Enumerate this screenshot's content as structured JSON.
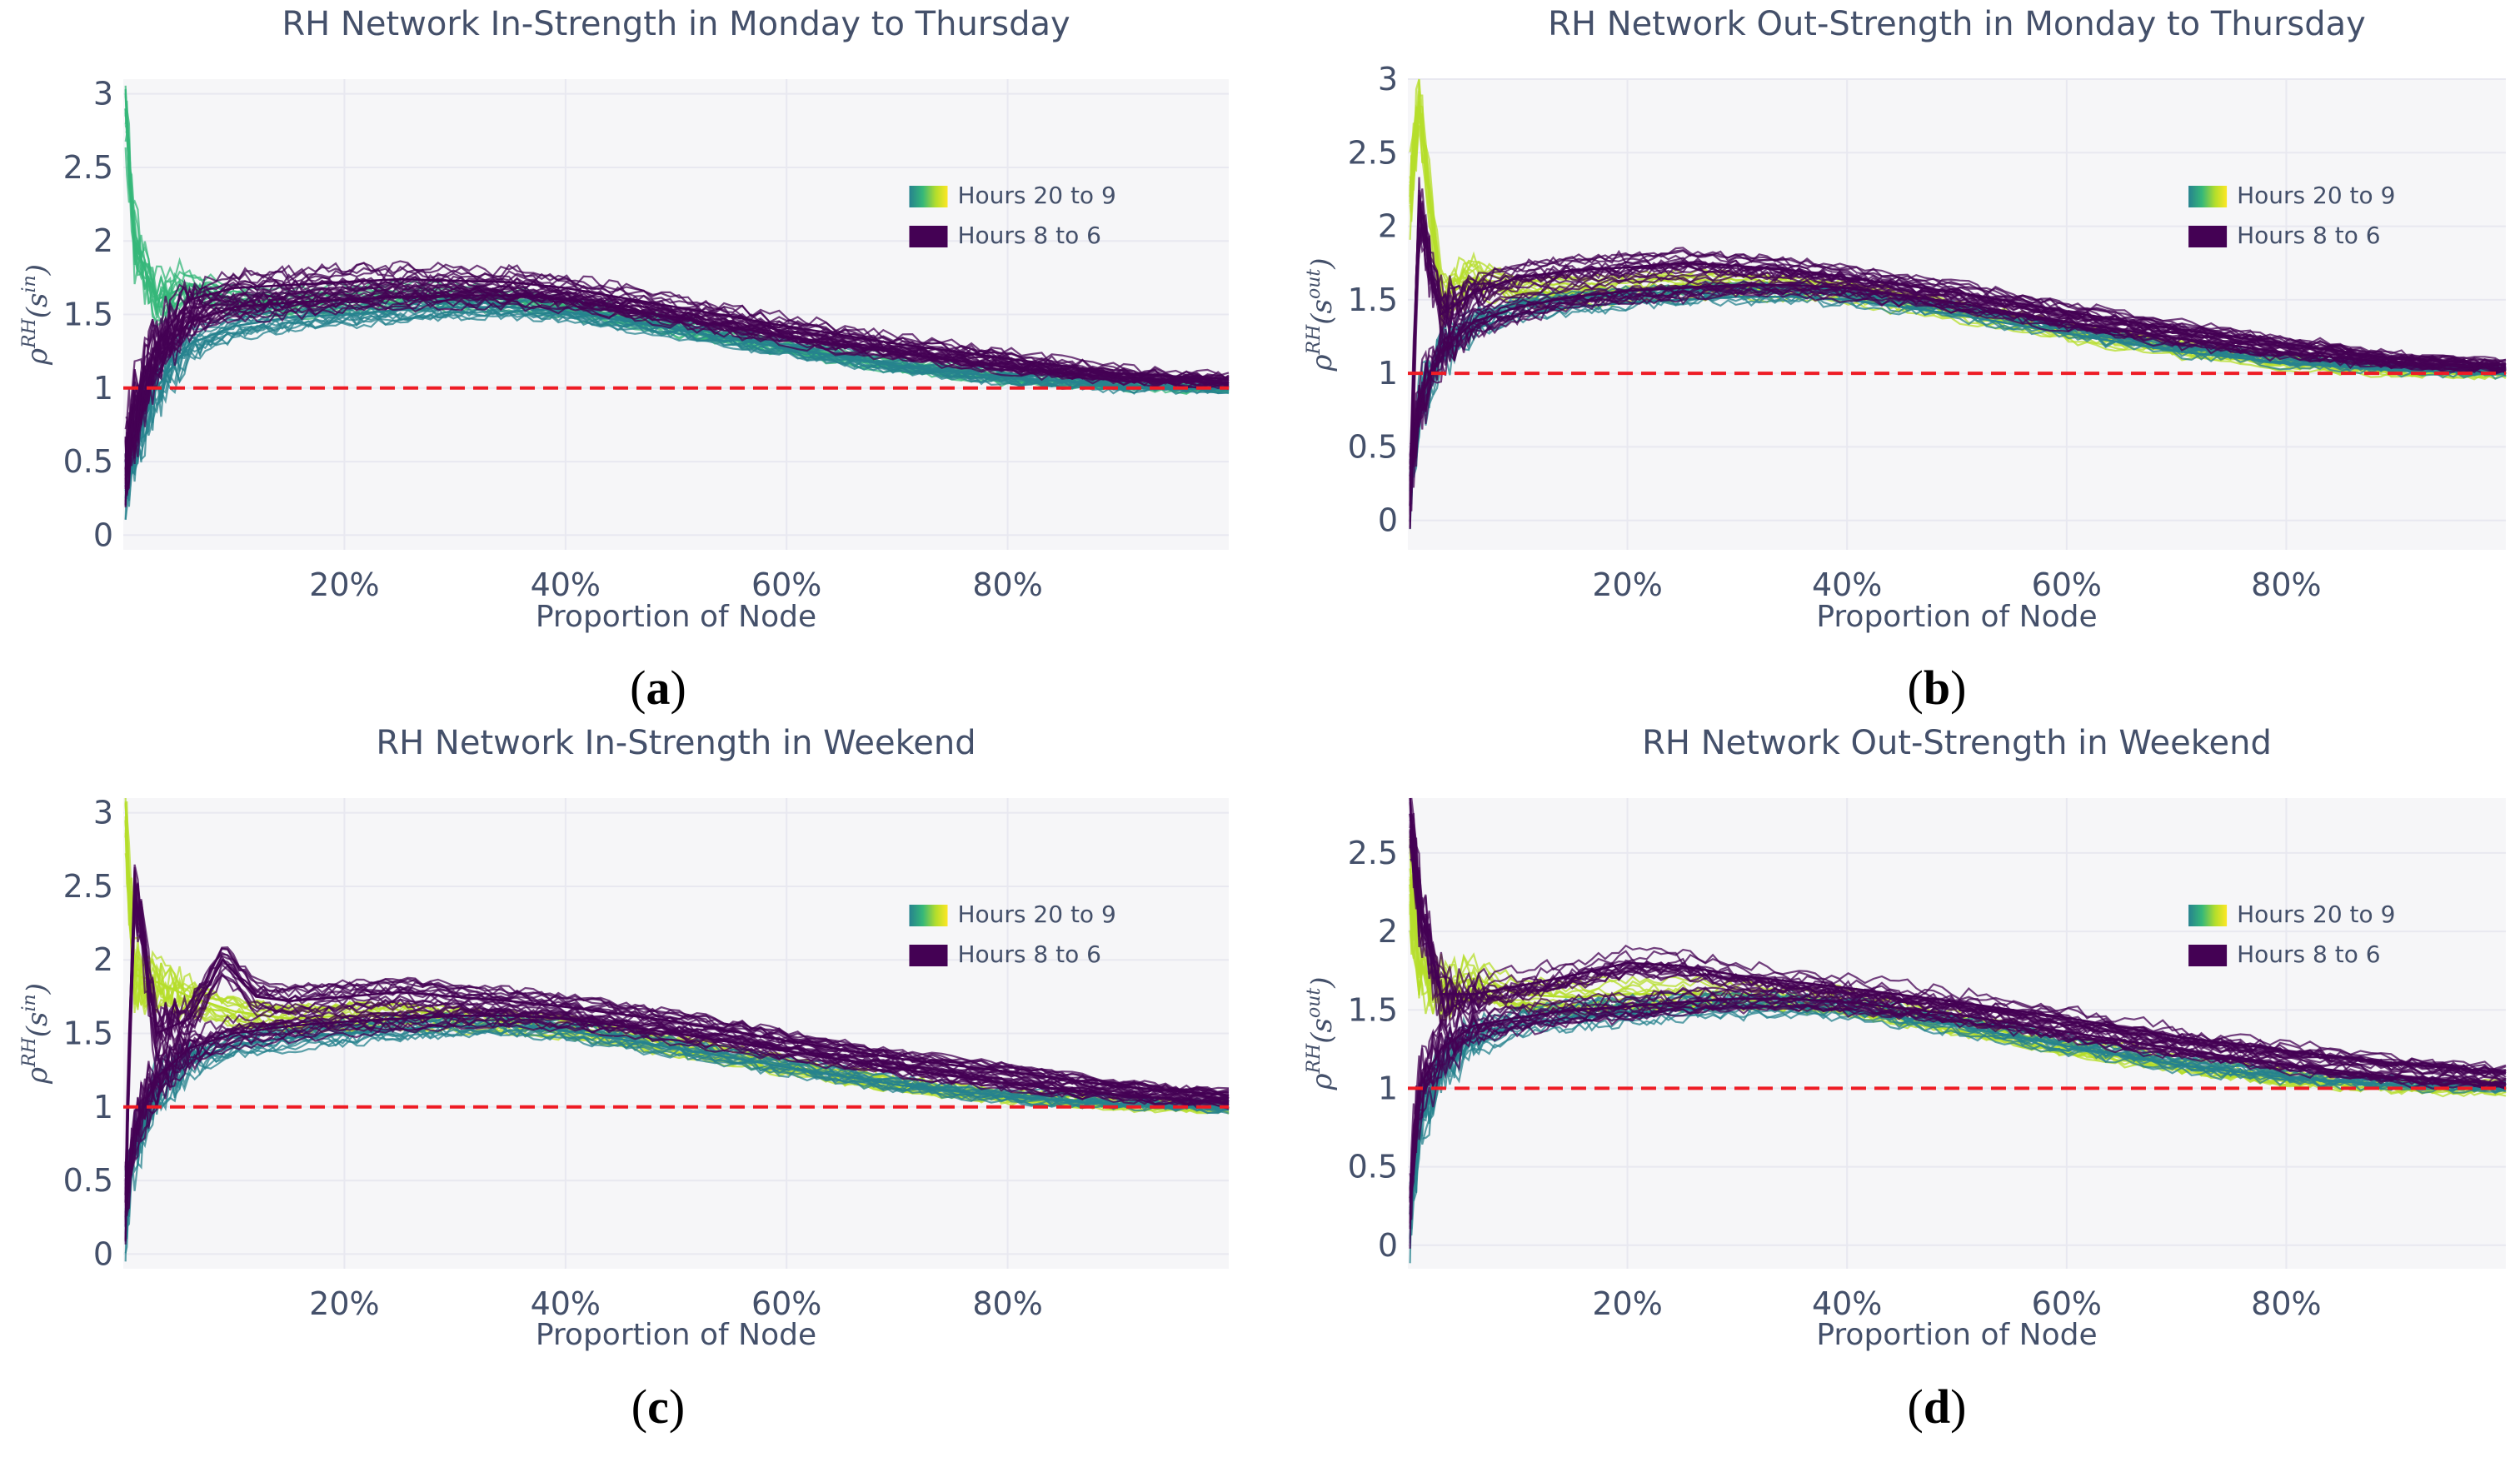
{
  "figure": {
    "background": "#ffffff",
    "plot_background": "#f6f6f8",
    "grid_color": "#e8e8f0",
    "text_color": "#44506a",
    "reference_line_color": "#ee1c25",
    "colorscale": [
      "#3e4a89",
      "#26828e",
      "#35b779",
      "#b5de2b",
      "#fde725"
    ],
    "dark_line_color": "#440154"
  },
  "chart_data": [
    {
      "type": "line",
      "panel_label": "a",
      "title": "RH Network In-Strength in Monday to Thursday",
      "xlabel": "Proportion of Node",
      "ylabel": "ρ^{RH}(s^{in})",
      "ylabel_parts": {
        "rho": "ρ",
        "rho_sup": "RH",
        "s": "s",
        "s_sup": "in"
      },
      "xlim": [
        0,
        1.0
      ],
      "ylim": [
        -0.1,
        3.1
      ],
      "xticks": [
        0.2,
        0.4,
        0.6,
        0.8
      ],
      "xtick_labels": [
        "20%",
        "40%",
        "60%",
        "80%"
      ],
      "yticks": [
        0,
        0.5,
        1,
        1.5,
        2,
        2.5,
        3
      ],
      "ytick_labels": [
        "0",
        "0.5",
        "1",
        "1.5",
        "2",
        "2.5",
        "3"
      ],
      "reference_line": {
        "y": 1,
        "style": "dashed"
      },
      "legend": {
        "position": "top-right",
        "entries": [
          "Hours 20 to 9",
          "Hours 8 to 6"
        ]
      },
      "series": [
        {
          "name": "Hours 8 to 6",
          "color": "#440154",
          "x": [
            0.002,
            0.01,
            0.03,
            0.06,
            0.1,
            0.15,
            0.2,
            0.25,
            0.3,
            0.35,
            0.4,
            0.5,
            0.6,
            0.7,
            0.8,
            0.9,
            1.0
          ],
          "y": [
            0.5,
            0.85,
            1.3,
            1.6,
            1.68,
            1.7,
            1.72,
            1.74,
            1.73,
            1.72,
            1.68,
            1.55,
            1.42,
            1.3,
            1.2,
            1.1,
            1.06
          ]
        },
        {
          "name": "Hours 8 to 6",
          "color": "#440154",
          "x": [
            0.002,
            0.01,
            0.03,
            0.06,
            0.1,
            0.15,
            0.2,
            0.25,
            0.3,
            0.35,
            0.4,
            0.5,
            0.6,
            0.7,
            0.8,
            0.9,
            1.0
          ],
          "y": [
            0.45,
            0.75,
            1.2,
            1.45,
            1.55,
            1.58,
            1.6,
            1.62,
            1.63,
            1.63,
            1.6,
            1.48,
            1.35,
            1.24,
            1.14,
            1.07,
            1.03
          ]
        },
        {
          "name": "Hours 20 to 9",
          "color": "#35b779",
          "x": [
            0.002,
            0.01,
            0.03,
            0.06,
            0.1,
            0.15,
            0.2,
            0.25,
            0.3,
            0.35,
            0.4,
            0.5,
            0.6,
            0.7,
            0.8,
            0.9,
            1.0
          ],
          "y": [
            2.9,
            2.0,
            1.6,
            1.7,
            1.6,
            1.58,
            1.6,
            1.62,
            1.62,
            1.6,
            1.56,
            1.42,
            1.28,
            1.16,
            1.07,
            1.02,
            1.0
          ]
        },
        {
          "name": "Hours 20 to 9",
          "color": "#26828e",
          "x": [
            0.002,
            0.01,
            0.03,
            0.06,
            0.1,
            0.15,
            0.2,
            0.25,
            0.3,
            0.35,
            0.4,
            0.5,
            0.6,
            0.7,
            0.8,
            0.9,
            1.0
          ],
          "y": [
            0.3,
            0.6,
            1.0,
            1.3,
            1.42,
            1.48,
            1.5,
            1.53,
            1.55,
            1.55,
            1.52,
            1.4,
            1.27,
            1.15,
            1.07,
            1.02,
            1.0
          ]
        }
      ]
    },
    {
      "type": "line",
      "panel_label": "b",
      "title": "RH Network Out-Strength in Monday to Thursday",
      "xlabel": "Proportion of Node",
      "ylabel": "ρ^{RH}(s^{out})",
      "ylabel_parts": {
        "rho": "ρ",
        "rho_sup": "RH",
        "s": "s",
        "s_sup": "out"
      },
      "xlim": [
        0,
        1.0
      ],
      "ylim": [
        -0.2,
        3.0
      ],
      "xticks": [
        0.2,
        0.4,
        0.6,
        0.8
      ],
      "xtick_labels": [
        "20%",
        "40%",
        "60%",
        "80%"
      ],
      "yticks": [
        0,
        0.5,
        1,
        1.5,
        2,
        2.5,
        3
      ],
      "ytick_labels": [
        "0",
        "0.5",
        "1",
        "1.5",
        "2",
        "2.5",
        "3"
      ],
      "reference_line": {
        "y": 1,
        "style": "dashed"
      },
      "legend": {
        "position": "top-right",
        "entries": [
          "Hours 20 to 9",
          "Hours 8 to 6"
        ]
      },
      "series": [
        {
          "name": "Hours 8 to 6",
          "color": "#440154",
          "x": [
            0.002,
            0.01,
            0.03,
            0.06,
            0.1,
            0.15,
            0.2,
            0.25,
            0.3,
            0.35,
            0.4,
            0.5,
            0.6,
            0.7,
            0.8,
            0.9,
            1.0
          ],
          "y": [
            0.1,
            2.1,
            1.4,
            1.55,
            1.65,
            1.7,
            1.72,
            1.75,
            1.73,
            1.7,
            1.65,
            1.55,
            1.42,
            1.3,
            1.2,
            1.1,
            1.06
          ]
        },
        {
          "name": "Hours 8 to 6",
          "color": "#440154",
          "x": [
            0.002,
            0.01,
            0.03,
            0.06,
            0.1,
            0.15,
            0.2,
            0.25,
            0.3,
            0.35,
            0.4,
            0.5,
            0.6,
            0.7,
            0.8,
            0.9,
            1.0
          ],
          "y": [
            0.3,
            0.8,
            1.15,
            1.35,
            1.45,
            1.52,
            1.56,
            1.58,
            1.6,
            1.6,
            1.58,
            1.48,
            1.35,
            1.24,
            1.14,
            1.07,
            1.03
          ]
        },
        {
          "name": "Hours 20 to 9",
          "color": "#b5de2b",
          "x": [
            0.002,
            0.01,
            0.03,
            0.06,
            0.1,
            0.15,
            0.2,
            0.25,
            0.3,
            0.35,
            0.4,
            0.5,
            0.6,
            0.7,
            0.8,
            0.9,
            1.0
          ],
          "y": [
            2.2,
            2.85,
            1.5,
            1.65,
            1.55,
            1.55,
            1.57,
            1.6,
            1.6,
            1.58,
            1.55,
            1.42,
            1.28,
            1.16,
            1.07,
            1.02,
            1.0
          ]
        },
        {
          "name": "Hours 20 to 9",
          "color": "#26828e",
          "x": [
            0.002,
            0.01,
            0.03,
            0.06,
            0.1,
            0.15,
            0.2,
            0.25,
            0.3,
            0.35,
            0.4,
            0.5,
            0.6,
            0.7,
            0.8,
            0.9,
            1.0
          ],
          "y": [
            0.2,
            0.7,
            1.1,
            1.3,
            1.4,
            1.45,
            1.48,
            1.5,
            1.52,
            1.52,
            1.5,
            1.4,
            1.27,
            1.15,
            1.07,
            1.02,
            1.0
          ]
        }
      ]
    },
    {
      "type": "line",
      "panel_label": "c",
      "title": "RH Network In-Strength in Weekend",
      "xlabel": "Proportion of Node",
      "ylabel": "ρ^{RH}(s^{in})",
      "ylabel_parts": {
        "rho": "ρ",
        "rho_sup": "RH",
        "s": "s",
        "s_sup": "in"
      },
      "xlim": [
        0,
        1.0
      ],
      "ylim": [
        -0.1,
        3.1
      ],
      "xticks": [
        0.2,
        0.4,
        0.6,
        0.8
      ],
      "xtick_labels": [
        "20%",
        "40%",
        "60%",
        "80%"
      ],
      "yticks": [
        0,
        0.5,
        1,
        1.5,
        2,
        2.5,
        3
      ],
      "ytick_labels": [
        "0",
        "0.5",
        "1",
        "1.5",
        "2",
        "2.5",
        "3"
      ],
      "reference_line": {
        "y": 1,
        "style": "dashed"
      },
      "legend": {
        "position": "top-right",
        "entries": [
          "Hours 20 to 9",
          "Hours 8 to 6"
        ]
      },
      "series": [
        {
          "name": "Hours 8 to 6",
          "color": "#440154",
          "x": [
            0.002,
            0.01,
            0.03,
            0.06,
            0.09,
            0.12,
            0.15,
            0.2,
            0.25,
            0.3,
            0.35,
            0.4,
            0.5,
            0.6,
            0.7,
            0.8,
            0.9,
            1.0
          ],
          "y": [
            0.4,
            2.5,
            1.5,
            1.6,
            2.0,
            1.75,
            1.72,
            1.75,
            1.78,
            1.75,
            1.72,
            1.68,
            1.58,
            1.45,
            1.33,
            1.24,
            1.14,
            1.08
          ]
        },
        {
          "name": "Hours 8 to 6",
          "color": "#440154",
          "x": [
            0.002,
            0.01,
            0.03,
            0.06,
            0.1,
            0.15,
            0.2,
            0.25,
            0.3,
            0.35,
            0.4,
            0.5,
            0.6,
            0.7,
            0.8,
            0.9,
            1.0
          ],
          "y": [
            0.35,
            0.85,
            1.2,
            1.4,
            1.5,
            1.55,
            1.58,
            1.6,
            1.62,
            1.62,
            1.6,
            1.5,
            1.38,
            1.26,
            1.16,
            1.08,
            1.03
          ]
        },
        {
          "name": "Hours 20 to 9",
          "color": "#b5de2b",
          "x": [
            0.002,
            0.01,
            0.03,
            0.06,
            0.1,
            0.15,
            0.2,
            0.25,
            0.3,
            0.35,
            0.4,
            0.5,
            0.6,
            0.7,
            0.8,
            0.9,
            1.0
          ],
          "y": [
            2.95,
            1.9,
            1.85,
            1.75,
            1.65,
            1.6,
            1.62,
            1.62,
            1.6,
            1.58,
            1.55,
            1.42,
            1.28,
            1.16,
            1.07,
            1.02,
            1.0
          ]
        },
        {
          "name": "Hours 20 to 9",
          "color": "#26828e",
          "x": [
            0.002,
            0.01,
            0.03,
            0.06,
            0.1,
            0.15,
            0.2,
            0.25,
            0.3,
            0.35,
            0.4,
            0.5,
            0.6,
            0.7,
            0.8,
            0.9,
            1.0
          ],
          "y": [
            0.25,
            0.7,
            1.1,
            1.32,
            1.42,
            1.47,
            1.5,
            1.53,
            1.55,
            1.55,
            1.52,
            1.4,
            1.27,
            1.15,
            1.07,
            1.02,
            1.0
          ]
        }
      ]
    },
    {
      "type": "line",
      "panel_label": "d",
      "title": "RH Network Out-Strength in Weekend",
      "xlabel": "Proportion of Node",
      "ylabel": "ρ^{RH}(s^{out})",
      "ylabel_parts": {
        "rho": "ρ",
        "rho_sup": "RH",
        "s": "s",
        "s_sup": "out"
      },
      "xlim": [
        0,
        1.0
      ],
      "ylim": [
        -0.15,
        2.85
      ],
      "xticks": [
        0.2,
        0.4,
        0.6,
        0.8
      ],
      "xtick_labels": [
        "20%",
        "40%",
        "60%",
        "80%"
      ],
      "yticks": [
        0,
        0.5,
        1,
        1.5,
        2,
        2.5
      ],
      "ytick_labels": [
        "0",
        "0.5",
        "1",
        "1.5",
        "2",
        "2.5"
      ],
      "reference_line": {
        "y": 1,
        "style": "dashed"
      },
      "legend": {
        "position": "top-right",
        "entries": [
          "Hours 20 to 9",
          "Hours 8 to 6"
        ]
      },
      "series": [
        {
          "name": "Hours 8 to 6",
          "color": "#440154",
          "x": [
            0.002,
            0.01,
            0.03,
            0.06,
            0.1,
            0.15,
            0.2,
            0.25,
            0.3,
            0.35,
            0.4,
            0.5,
            0.6,
            0.7,
            0.8,
            0.9,
            1.0
          ],
          "y": [
            2.75,
            2.2,
            1.6,
            1.6,
            1.65,
            1.72,
            1.8,
            1.78,
            1.72,
            1.68,
            1.64,
            1.55,
            1.45,
            1.33,
            1.24,
            1.16,
            1.1
          ]
        },
        {
          "name": "Hours 8 to 6",
          "color": "#440154",
          "x": [
            0.002,
            0.01,
            0.03,
            0.06,
            0.1,
            0.15,
            0.2,
            0.25,
            0.3,
            0.35,
            0.4,
            0.5,
            0.6,
            0.7,
            0.8,
            0.9,
            1.0
          ],
          "y": [
            0.3,
            1.0,
            1.25,
            1.4,
            1.45,
            1.5,
            1.52,
            1.55,
            1.57,
            1.57,
            1.55,
            1.47,
            1.36,
            1.25,
            1.15,
            1.07,
            1.03
          ]
        },
        {
          "name": "Hours 20 to 9",
          "color": "#b5de2b",
          "x": [
            0.002,
            0.01,
            0.03,
            0.06,
            0.1,
            0.15,
            0.2,
            0.25,
            0.3,
            0.35,
            0.4,
            0.5,
            0.6,
            0.7,
            0.8,
            0.9,
            1.0
          ],
          "y": [
            2.3,
            1.8,
            1.65,
            1.7,
            1.6,
            1.58,
            1.6,
            1.6,
            1.6,
            1.58,
            1.55,
            1.42,
            1.28,
            1.16,
            1.07,
            1.02,
            1.0
          ]
        },
        {
          "name": "Hours 20 to 9",
          "color": "#26828e",
          "x": [
            0.002,
            0.01,
            0.03,
            0.06,
            0.1,
            0.15,
            0.2,
            0.25,
            0.3,
            0.35,
            0.4,
            0.5,
            0.6,
            0.7,
            0.8,
            0.9,
            1.0
          ],
          "y": [
            0.2,
            0.75,
            1.1,
            1.3,
            1.4,
            1.45,
            1.48,
            1.5,
            1.52,
            1.52,
            1.5,
            1.4,
            1.27,
            1.15,
            1.07,
            1.02,
            1.0
          ]
        }
      ]
    }
  ]
}
